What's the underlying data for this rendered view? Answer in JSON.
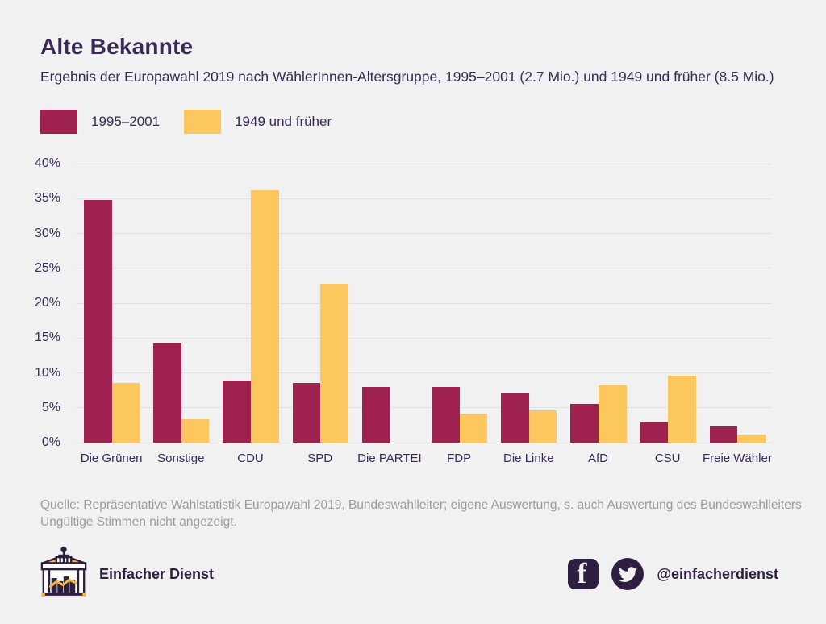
{
  "header": {
    "title": "Alte Bekannte",
    "subtitle": "Ergebnis der Europawahl 2019 nach WählerInnen-Altersgruppe, 1995–2001 (2.7 Mio.) und 1949 und früher (8.5 Mio.)"
  },
  "chart_data": {
    "type": "bar",
    "categories": [
      "Die Grünen",
      "Sonstige",
      "CDU",
      "SPD",
      "Die PARTEI",
      "FDP",
      "Die Linke",
      "AfD",
      "CSU",
      "Freie Wähler"
    ],
    "series": [
      {
        "name": "1995–2001",
        "color": "#9e2150",
        "values": [
          34.8,
          14.2,
          8.9,
          8.6,
          8.0,
          8.0,
          7.0,
          5.6,
          2.9,
          2.3
        ]
      },
      {
        "name": "1949 und früher",
        "color": "#fbc75e",
        "values": [
          8.5,
          3.3,
          36.2,
          22.8,
          0,
          4.2,
          4.6,
          8.2,
          9.6,
          1.1
        ]
      }
    ],
    "title": "Alte Bekannte",
    "xlabel": "",
    "ylabel": "",
    "ylim": [
      0,
      40
    ],
    "ytick_step": 5,
    "ytick_suffix": "%",
    "grid": true,
    "legend_position": "top-left"
  },
  "source": {
    "line1": "Quelle: Repräsentative Wahlstatistik Europawahl 2019, Bundeswahlleiter; eigene Auswertung, s. auch Auswertung des Bundeswahlleiters",
    "line2": "Ungültige Stimmen nicht angezeigt."
  },
  "footer": {
    "brand": "Einfacher Dienst",
    "handle": "@einfacherdienst",
    "logo_icon": "brandenburg-gate-icon",
    "social_icons": [
      "facebook-icon",
      "twitter-icon"
    ]
  },
  "colors": {
    "background": "#f1f1f2",
    "text_dark": "#3a2a55",
    "text_gray": "#9c9ca0",
    "grid": "#e2e1e4",
    "bar_red": "#9e2150",
    "bar_yellow": "#fbc75e",
    "icon_dark": "#2e1f41",
    "logo_yellow": "#f5b63e"
  }
}
